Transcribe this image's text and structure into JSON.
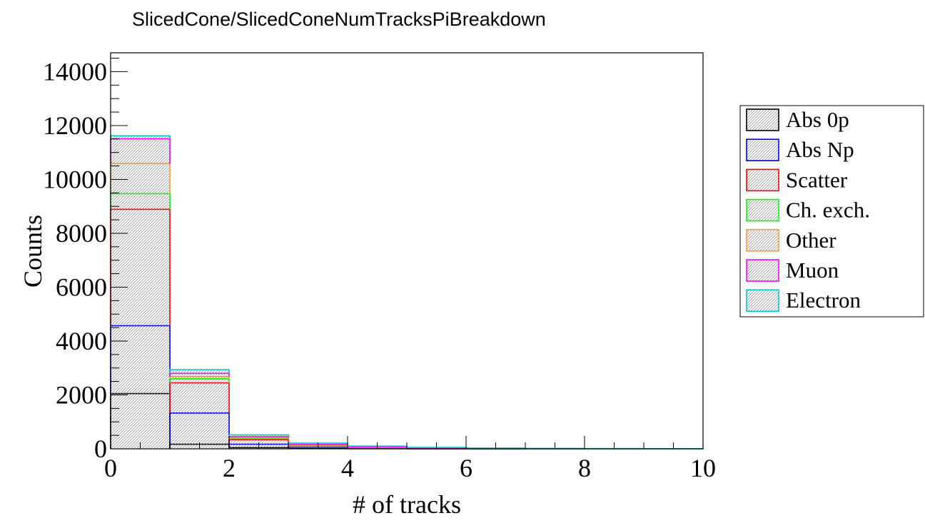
{
  "chart_data": {
    "type": "bar",
    "stacked": true,
    "title": "SlicedCone/SlicedConeNumTracksPiBreakdown",
    "xlabel": "# of tracks",
    "ylabel": "Counts",
    "xlim": [
      0,
      10
    ],
    "ylim": [
      0,
      14700
    ],
    "xticks": [
      "0",
      "2",
      "4",
      "6",
      "8",
      "10"
    ],
    "yticks": [
      "0",
      "2000",
      "4000",
      "6000",
      "8000",
      "10000",
      "12000",
      "14000"
    ],
    "bin_edges": [
      0,
      1,
      2,
      3,
      4,
      5,
      6,
      7,
      8,
      9,
      10
    ],
    "legend_position": "right",
    "series": [
      {
        "name": "Abs 0p",
        "color": "#000000",
        "values": [
          2050,
          170,
          45,
          15,
          5,
          2,
          1,
          0,
          0,
          0
        ]
      },
      {
        "name": "Abs Np",
        "color": "#0000ff",
        "values": [
          2520,
          1160,
          125,
          30,
          10,
          4,
          2,
          1,
          0,
          0
        ]
      },
      {
        "name": "Scatter",
        "color": "#ff0000",
        "values": [
          4320,
          1120,
          170,
          60,
          25,
          10,
          5,
          2,
          1,
          0
        ]
      },
      {
        "name": "Ch. exch.",
        "color": "#00ff00",
        "values": [
          580,
          150,
          40,
          15,
          6,
          3,
          1,
          0,
          0,
          0
        ]
      },
      {
        "name": "Other",
        "color": "#ff9933",
        "values": [
          1120,
          80,
          30,
          15,
          6,
          3,
          2,
          1,
          0,
          0
        ]
      },
      {
        "name": "Muon",
        "color": "#ff00ff",
        "values": [
          920,
          120,
          45,
          30,
          20,
          12,
          8,
          5,
          3,
          2
        ]
      },
      {
        "name": "Electron",
        "color": "#00cccc",
        "values": [
          110,
          140,
          65,
          45,
          28,
          16,
          11,
          6,
          4,
          3
        ]
      }
    ]
  }
}
